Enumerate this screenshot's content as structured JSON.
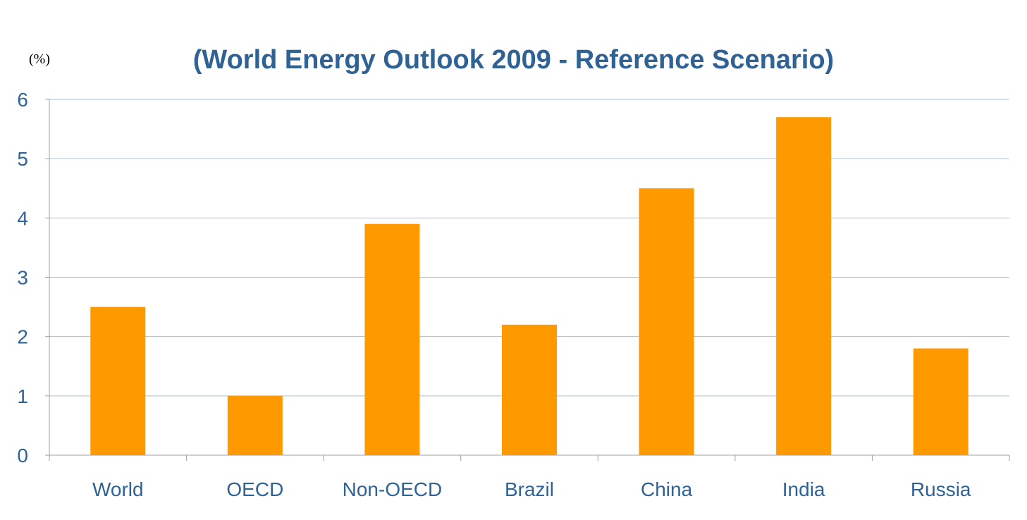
{
  "chart_data": {
    "type": "bar",
    "title": "(World Energy Outlook 2009 - Reference Scenario)",
    "unit_label": "(%)",
    "categories": [
      "World",
      "OECD",
      "Non-OECD",
      "Brazil",
      "China",
      "India",
      "Russia"
    ],
    "values": [
      2.5,
      1.0,
      3.9,
      2.2,
      4.5,
      5.7,
      1.8
    ],
    "ylim": [
      0,
      6
    ],
    "yticks": [
      "0",
      "1",
      "2",
      "3",
      "4",
      "5",
      "6"
    ],
    "grid": true,
    "bar_color": "#ff9900",
    "axis_text_color": "#2f6295",
    "grid_color": "#a6c0d6"
  }
}
